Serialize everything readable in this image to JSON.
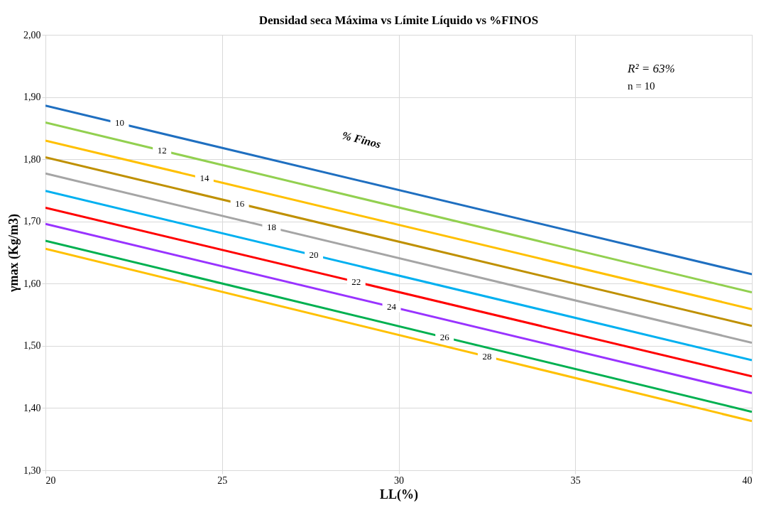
{
  "chart_data": {
    "type": "line",
    "title": "Densidad seca Máxima vs Límite Líquido vs %FINOS",
    "xlabel": "LL(%)",
    "ylabel": "γmax  (Kg/m3)",
    "x": [
      20,
      40
    ],
    "series": [
      {
        "color": "#1f6fc0",
        "values": [
          1.886,
          1.615
        ]
      },
      {
        "color": "#92d050",
        "values": [
          1.859,
          1.586
        ]
      },
      {
        "color": "#ffc000",
        "values": [
          1.83,
          1.559
        ]
      },
      {
        "color": "#bf9000",
        "values": [
          1.803,
          1.532
        ]
      },
      {
        "color": "#a5a5a5",
        "values": [
          1.777,
          1.505
        ]
      },
      {
        "color": "#00b0f0",
        "values": [
          1.749,
          1.477
        ]
      },
      {
        "color": "#ff0000",
        "values": [
          1.722,
          1.451
        ]
      },
      {
        "color": "#9933ff",
        "values": [
          1.696,
          1.424
        ]
      },
      {
        "color": "#00b050",
        "values": [
          1.669,
          1.394
        ]
      },
      {
        "color": "#ffc000",
        "values": [
          1.656,
          1.379
        ]
      }
    ],
    "xlim": [
      20,
      40
    ],
    "xticks": [
      20,
      25,
      30,
      35,
      40
    ],
    "ylim": [
      1.3,
      2.0
    ],
    "yticks": [
      {
        "value": 1.3,
        "label": "1,30"
      },
      {
        "value": 1.4,
        "label": "1,40"
      },
      {
        "value": 1.5,
        "label": "1,50"
      },
      {
        "value": 1.6,
        "label": "1,60"
      },
      {
        "value": 1.7,
        "label": "1,70"
      },
      {
        "value": 1.8,
        "label": "1,80"
      },
      {
        "value": 1.9,
        "label": "1,90"
      },
      {
        "value": 2.0,
        "label": "2,00"
      }
    ],
    "grid": true,
    "legend": false,
    "marker": "none",
    "line_style": "solid",
    "annotations": [
      {
        "text": "10",
        "x": 22.1,
        "y": 1.858
      },
      {
        "text": "12",
        "x": 23.3,
        "y": 1.814
      },
      {
        "text": "14",
        "x": 24.5,
        "y": 1.769
      },
      {
        "text": "16",
        "x": 25.5,
        "y": 1.728
      },
      {
        "text": "18",
        "x": 26.4,
        "y": 1.69
      },
      {
        "text": "20",
        "x": 27.6,
        "y": 1.646
      },
      {
        "text": "22",
        "x": 28.8,
        "y": 1.603
      },
      {
        "text": "24",
        "x": 29.8,
        "y": 1.563
      },
      {
        "text": "26",
        "x": 31.3,
        "y": 1.514
      },
      {
        "text": "28",
        "x": 32.5,
        "y": 1.483
      },
      "% Finos",
      "R² = 63%",
      "n = 10"
    ]
  }
}
